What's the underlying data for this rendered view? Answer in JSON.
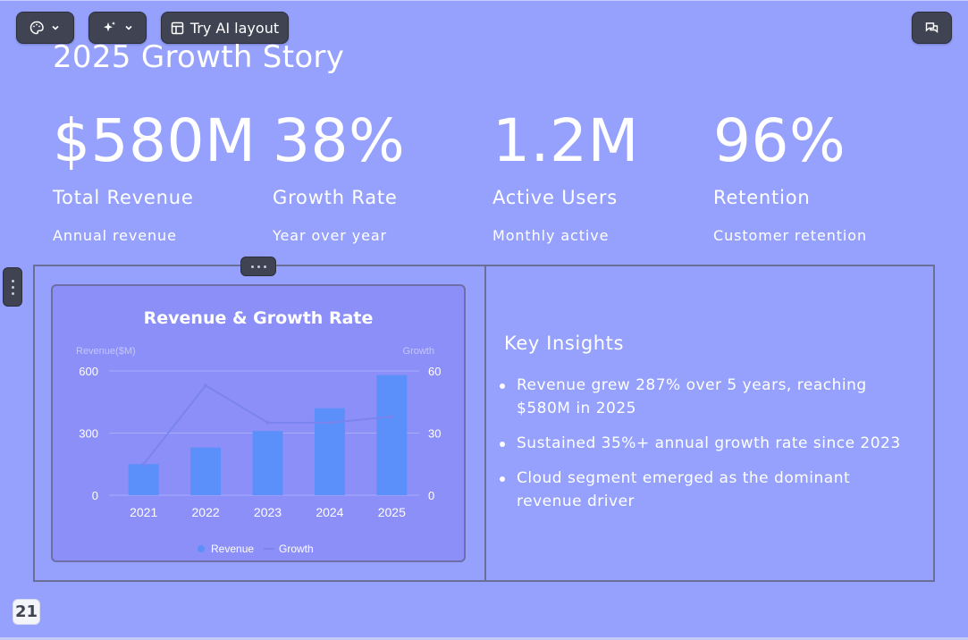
{
  "toolbar": {
    "theme_icon": "palette-icon",
    "ai_icon": "sparkles-icon",
    "try_ai_label": "Try AI layout",
    "layout_icon": "layout-icon",
    "comments_icon": "comments-icon",
    "dropdown_icon": "chevron-down-icon"
  },
  "slide": {
    "title": "2025 Growth Story",
    "stats": [
      {
        "value": "$580M",
        "label": "Total Revenue",
        "sub": "Annual revenue"
      },
      {
        "value": "38%",
        "label": "Growth Rate",
        "sub": "Year over year"
      },
      {
        "value": "1.2M",
        "label": "Active Users",
        "sub": "Monthly active"
      },
      {
        "value": "96%",
        "label": "Retention",
        "sub": "Customer retention"
      }
    ],
    "insights_title": "Key Insights",
    "insights": [
      "Revenue grew 287% over 5 years, reaching $580M in 2025",
      "Sustained 35%+ annual growth rate since 2023",
      "Cloud segment emerged as the dominant revenue driver"
    ],
    "slide_number": "21"
  },
  "colors": {
    "background": "#95a1fc",
    "toolbar": "#3f4352",
    "revenue_bar": "#5b8ff9",
    "growth_line": "#7b84ee"
  },
  "chart_data": {
    "type": "bar",
    "title": "Revenue & Growth Rate",
    "categories": [
      "2021",
      "2022",
      "2023",
      "2024",
      "2025"
    ],
    "series": [
      {
        "name": "Revenue",
        "type": "bar",
        "axis": "left",
        "values": [
          150,
          230,
          310,
          420,
          580
        ]
      },
      {
        "name": "Growth",
        "type": "line",
        "axis": "right",
        "values": [
          15,
          53,
          35,
          35,
          38
        ]
      }
    ],
    "y_left": {
      "label": "Revenue($M)",
      "ticks": [
        "0",
        "300",
        "600"
      ],
      "range": [
        0,
        600
      ]
    },
    "y_right": {
      "label": "Growth",
      "ticks": [
        "0",
        "30",
        "60"
      ],
      "range": [
        0,
        60
      ]
    },
    "legend": [
      "Revenue",
      "Growth"
    ],
    "legend_position": "bottom",
    "grid": true
  }
}
